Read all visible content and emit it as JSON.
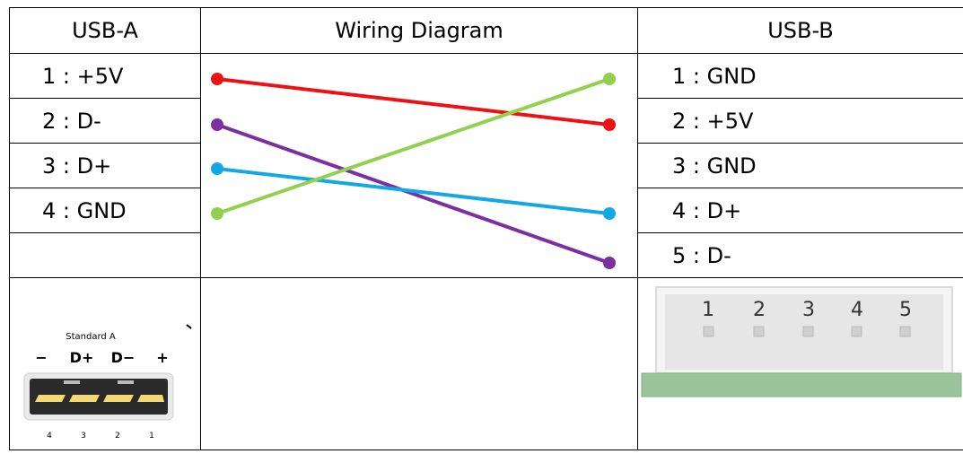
{
  "headers": {
    "usb_a": "USB-A",
    "wiring": "Wiring Diagram",
    "usb_b": "USB-B"
  },
  "usb_a_pins": [
    "1 : +5V",
    "2 : D-",
    "3 : D+",
    "4 : GND"
  ],
  "usb_b_pins": [
    "1 : GND",
    "2 : +5V",
    "3 : GND",
    "4 : D+",
    "5 : D-"
  ],
  "wires": [
    {
      "from": "+5V",
      "to": "+5V",
      "color": "#ee1111"
    },
    {
      "from": "D-",
      "to": "D-",
      "color": "#7b2fa0"
    },
    {
      "from": "D+",
      "to": "D+",
      "color": "#12a8e6"
    },
    {
      "from": "GND",
      "to": "GND",
      "color": "#92d050"
    }
  ],
  "usb_a_figure": {
    "title": "Standard A",
    "signals": [
      "−",
      "D+",
      "D−",
      "+"
    ],
    "pin_numbers": [
      "4",
      "3",
      "2",
      "1"
    ]
  },
  "usb_b_figure": {
    "pin_numbers": [
      "1",
      "2",
      "3",
      "4",
      "5"
    ]
  }
}
